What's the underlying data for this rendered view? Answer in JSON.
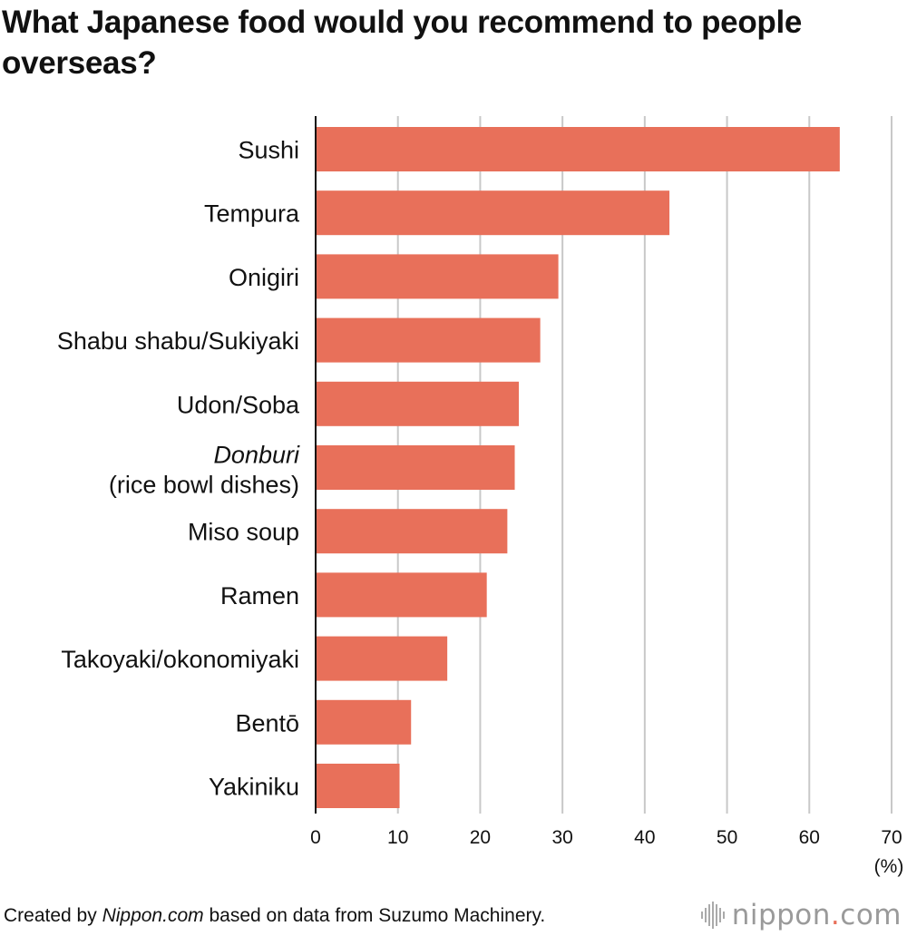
{
  "chart_data": {
    "type": "bar",
    "orientation": "horizontal",
    "title": "What Japanese food would you recommend to people overseas?",
    "categories": [
      {
        "label": "Sushi"
      },
      {
        "label": "Tempura"
      },
      {
        "label": "Onigiri"
      },
      {
        "label": "Shabu shabu/Sukiyaki"
      },
      {
        "label": "Udon/Soba"
      },
      {
        "label": "Donburi",
        "label_italic": true,
        "label_line2": "(rice bowl dishes)"
      },
      {
        "label": "Miso soup"
      },
      {
        "label": "Ramen"
      },
      {
        "label": "Takoyaki/okonomiyaki"
      },
      {
        "label": "Bentō"
      },
      {
        "label": "Yakiniku"
      }
    ],
    "values": [
      63.7,
      43.0,
      29.5,
      27.3,
      24.7,
      24.2,
      23.3,
      20.8,
      16.0,
      11.6,
      10.2
    ],
    "xlim": [
      0,
      70
    ],
    "xticks": [
      0,
      10,
      20,
      30,
      40,
      50,
      60,
      70
    ],
    "x_unit": "(%)",
    "grid": true,
    "bar_color": "#e8705a"
  },
  "footer": {
    "prefix": "Created by ",
    "source_italic": "Nippon.com",
    "suffix": " based on data from Suzumo Machinery."
  },
  "logo": {
    "name": "nippon",
    "dot": ".",
    "tld": "com"
  }
}
